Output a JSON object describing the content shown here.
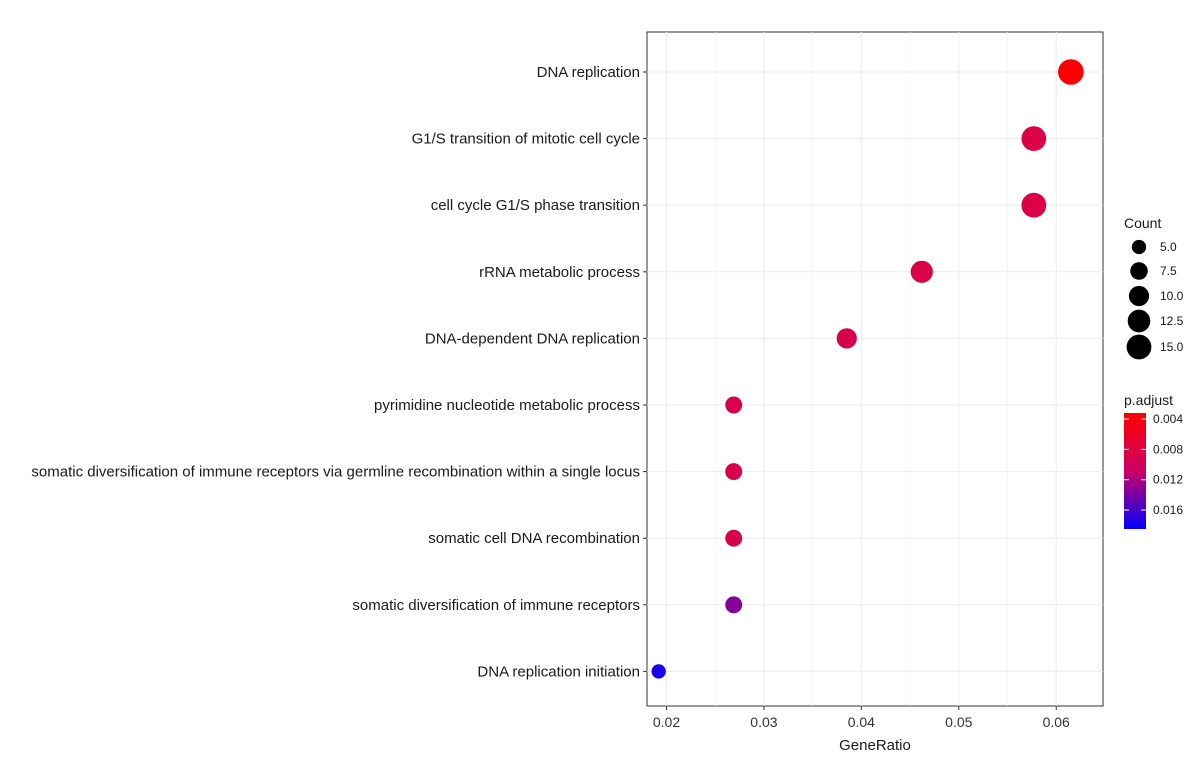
{
  "chart_data": {
    "type": "scatter",
    "title": "",
    "xlabel": "GeneRatio",
    "ylabel": "",
    "xlim": [
      0.018,
      0.0648
    ],
    "xticks": [
      "0.02",
      "0.03",
      "0.04",
      "0.05",
      "0.06"
    ],
    "xtick_values": [
      0.02,
      0.03,
      0.04,
      0.05,
      0.06
    ],
    "grid": true,
    "legend_placement": "right",
    "categories": [
      "DNA replication",
      "G1/S transition of mitotic cell cycle",
      "cell cycle G1/S phase transition",
      "rRNA metabolic process",
      "DNA-dependent DNA replication",
      "pyrimidine nucleotide metabolic process",
      "somatic diversification of immune receptors via germline recombination within a single locus",
      "somatic cell DNA recombination",
      "somatic diversification of immune receptors",
      "DNA replication initiation"
    ],
    "points": [
      {
        "term": "DNA replication",
        "gene_ratio": 0.0615,
        "count": 16,
        "p_adjust": 0.0035
      },
      {
        "term": "G1/S transition of mitotic cell cycle",
        "gene_ratio": 0.0577,
        "count": 15,
        "p_adjust": 0.0085
      },
      {
        "term": "cell cycle G1/S phase transition",
        "gene_ratio": 0.0577,
        "count": 15,
        "p_adjust": 0.0085
      },
      {
        "term": "rRNA metabolic process",
        "gene_ratio": 0.0462,
        "count": 12,
        "p_adjust": 0.0085
      },
      {
        "term": "DNA-dependent DNA replication",
        "gene_ratio": 0.0385,
        "count": 10,
        "p_adjust": 0.009
      },
      {
        "term": "pyrimidine nucleotide metabolic process",
        "gene_ratio": 0.0269,
        "count": 7,
        "p_adjust": 0.009
      },
      {
        "term": "somatic diversification of immune receptors via germline recombination within a single locus",
        "gene_ratio": 0.0269,
        "count": 7,
        "p_adjust": 0.009
      },
      {
        "term": "somatic cell DNA recombination",
        "gene_ratio": 0.0269,
        "count": 7,
        "p_adjust": 0.009
      },
      {
        "term": "somatic diversification of immune receptors",
        "gene_ratio": 0.0269,
        "count": 7,
        "p_adjust": 0.0135
      },
      {
        "term": "DNA replication initiation",
        "gene_ratio": 0.0192,
        "count": 5,
        "p_adjust": 0.0175
      }
    ],
    "size_legend": {
      "title": "Count",
      "labels": [
        "5.0",
        "7.5",
        "10.0",
        "12.5",
        "15.0"
      ],
      "values": [
        5.0,
        7.5,
        10.0,
        12.5,
        15.0
      ]
    },
    "color_legend": {
      "title": "p.adjust",
      "labels": [
        "0.004",
        "0.008",
        "0.012",
        "0.016"
      ],
      "values": [
        0.004,
        0.008,
        0.012,
        0.016
      ],
      "domain": [
        0.0032,
        0.0185
      ],
      "low_color": "#FF0000",
      "high_color": "#0000FF"
    }
  }
}
